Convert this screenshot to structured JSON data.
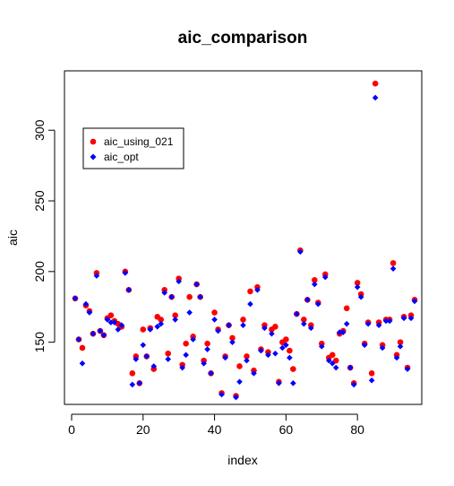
{
  "chart_data": {
    "type": "scatter",
    "title": "aic_comparison",
    "xlabel": "index",
    "ylabel": "aic",
    "xlim": [
      -2,
      98
    ],
    "ylim": [
      106,
      342
    ],
    "xticks": [
      0,
      20,
      40,
      60,
      80
    ],
    "yticks": [
      150,
      200,
      250,
      300
    ],
    "grid": false,
    "legend_position": "top-left",
    "series": [
      {
        "name": "aic_using_021",
        "color": "#ff0000",
        "marker": "circle",
        "values": [
          181,
          152,
          146,
          176,
          172,
          156,
          199,
          158,
          155,
          167,
          169,
          165,
          163,
          161,
          200,
          187,
          128,
          140,
          121,
          159,
          140,
          160,
          131,
          168,
          166,
          187,
          142,
          182,
          169,
          195,
          134,
          149,
          182,
          154,
          191,
          182,
          137,
          149,
          128,
          171,
          159,
          114,
          140,
          162,
          153,
          112,
          133,
          166,
          140,
          186,
          130,
          189,
          145,
          162,
          143,
          159,
          161,
          122,
          150,
          152,
          144,
          131,
          170,
          215,
          166,
          180,
          162,
          194,
          178,
          149,
          198,
          139,
          141,
          137,
          156,
          158,
          174,
          132,
          121,
          192,
          184,
          149,
          164,
          128,
          333,
          164,
          148,
          166,
          166,
          206,
          141,
          150,
          168,
          132,
          169,
          180
        ]
      },
      {
        "name": "aic_opt",
        "color": "#0000ff",
        "marker": "diamond",
        "values": [
          181,
          152,
          135,
          177,
          171,
          156,
          197,
          158,
          155,
          166,
          164,
          164,
          159,
          162,
          199,
          187,
          120,
          138,
          121,
          148,
          140,
          159,
          133,
          161,
          163,
          185,
          138,
          182,
          166,
          193,
          132,
          141,
          171,
          152,
          191,
          182,
          135,
          145,
          128,
          166,
          158,
          113,
          139,
          162,
          150,
          111,
          122,
          162,
          137,
          177,
          128,
          187,
          144,
          160,
          141,
          156,
          142,
          121,
          146,
          148,
          139,
          121,
          170,
          214,
          163,
          180,
          160,
          191,
          177,
          147,
          196,
          137,
          135,
          132,
          157,
          157,
          163,
          132,
          120,
          189,
          182,
          148,
          163,
          123,
          323,
          162,
          146,
          165,
          165,
          202,
          139,
          147,
          167,
          131,
          167,
          179
        ]
      }
    ]
  }
}
